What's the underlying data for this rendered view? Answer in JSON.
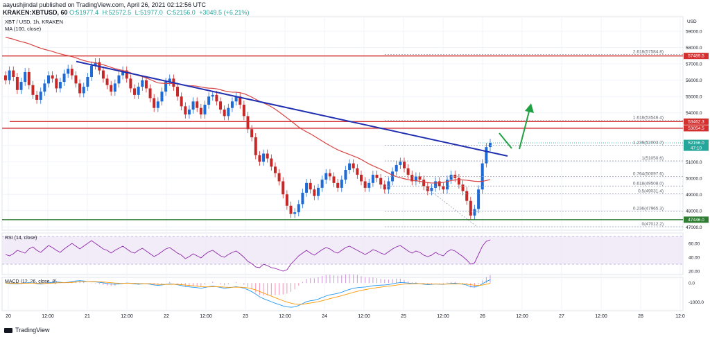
{
  "header": {
    "author_line": "aayushjindal published on TradingView.com, April 26, 2021 02:12:56 UTC",
    "symbol_line": "KRAKEN:XBTUSD, 60",
    "open": "O:51977.4",
    "high": "H:52572.5",
    "low": "L:51977.0",
    "close": "C:52156.0",
    "change": "+3049.5 (+6.21%)"
  },
  "footer": {
    "brand": "TradingView"
  },
  "chart_data": {
    "type": "candlestick",
    "title": "XBT / USD, 1h, KRAKEN",
    "ma_label": "MA (100, close)",
    "currency": "USD",
    "x_tick_labels": [
      "20",
      "12:00",
      "21",
      "12:00",
      "22",
      "12:00",
      "23",
      "12:00",
      "24",
      "12:00",
      "25",
      "12:00",
      "26",
      "12:00",
      "27",
      "12:00",
      "28",
      "12:0"
    ],
    "y_ticks": [
      47000,
      48000,
      49000,
      50000,
      51000,
      52000,
      53000,
      54000,
      55000,
      56000,
      57000,
      58000,
      59000
    ],
    "ylim": [
      46800,
      59900
    ],
    "price_lines": [
      {
        "price": 57489.5,
        "label": "57489.5",
        "color": "#d32f2f"
      },
      {
        "price": 53462.3,
        "label": "53462.3",
        "color": "#d32f2f"
      },
      {
        "price": 53054.5,
        "label": "53054.5",
        "color": "#d32f2f"
      },
      {
        "price": 52156.0,
        "label": "52156.0",
        "sub": "47:10",
        "color": "#26a69a"
      },
      {
        "price": 47446.0,
        "label": "47446.0",
        "color": "#2e7d32"
      }
    ],
    "fib_levels": [
      {
        "ratio": "2.618",
        "price": 57584.8
      },
      {
        "ratio": "1.618",
        "price": 53546.4
      },
      {
        "ratio": "1.236",
        "price": 52003.7
      },
      {
        "ratio": "1",
        "price": 51050.6
      },
      {
        "ratio": "0.764",
        "price": 50097.6
      },
      {
        "ratio": "0.618",
        "price": 49508.0
      },
      {
        "ratio": "0.5",
        "price": 49031.4
      },
      {
        "ratio": "0.236",
        "price": 47965.3
      },
      {
        "ratio": "0",
        "price": 47012.2
      }
    ],
    "candles_close": [
      56000,
      56600,
      56200,
      55400,
      55900,
      56500,
      55700,
      55100,
      54800,
      55300,
      55800,
      56300,
      56100,
      55500,
      55900,
      56400,
      56700,
      56300,
      55800,
      55200,
      55600,
      56200,
      56900,
      57100,
      56600,
      56100,
      55700,
      55300,
      55800,
      56300,
      56600,
      56100,
      55500,
      55100,
      55600,
      56000,
      55500,
      54900,
      54300,
      54700,
      55300,
      55900,
      56100,
      55600,
      55000,
      54400,
      53900,
      54200,
      54700,
      54300,
      53900,
      54500,
      55000,
      55100,
      54700,
      54200,
      53800,
      54300,
      54700,
      55000,
      54500,
      53800,
      53000,
      52500,
      51400,
      51000,
      51500,
      51200,
      50700,
      50300,
      49800,
      49000,
      48300,
      47800,
      47900,
      48400,
      49100,
      49700,
      49300,
      48900,
      49400,
      49900,
      50300,
      50100,
      49700,
      49400,
      49900,
      50500,
      50900,
      50600,
      50200,
      49800,
      49400,
      49700,
      50200,
      50000,
      49600,
      49300,
      49800,
      50400,
      50800,
      51000,
      50600,
      50200,
      49800,
      50100,
      49900,
      49500,
      49200,
      49400,
      49800,
      49500,
      49300,
      49900,
      50200,
      50000,
      49600,
      49200,
      48600,
      47700,
      48100,
      49300,
      50900,
      51900,
      52156
    ],
    "rsi": {
      "label": "RSI (14, close)",
      "ticks": [
        20,
        40,
        60
      ],
      "values": [
        44,
        42,
        45,
        50,
        48,
        46,
        52,
        55,
        50,
        47,
        52,
        57,
        54,
        50,
        47,
        52,
        56,
        60,
        56,
        52,
        56,
        60,
        64,
        60,
        56,
        52,
        50,
        46,
        50,
        53,
        56,
        52,
        48,
        46,
        50,
        53,
        49,
        45,
        41,
        44,
        48,
        52,
        54,
        50,
        46,
        43,
        38,
        41,
        45,
        42,
        39,
        44,
        48,
        50,
        46,
        42,
        40,
        44,
        47,
        49,
        45,
        40,
        34,
        31,
        26,
        25,
        30,
        28,
        25,
        24,
        22,
        20,
        22,
        30,
        36,
        42,
        46,
        50,
        46,
        43,
        47,
        51,
        54,
        52,
        48,
        46,
        50,
        54,
        56,
        53,
        50,
        47,
        44,
        47,
        51,
        49,
        46,
        44,
        48,
        52,
        55,
        57,
        53,
        49,
        46,
        49,
        47,
        43,
        41,
        43,
        47,
        44,
        42,
        48,
        51,
        49,
        45,
        41,
        36,
        30,
        32,
        44,
        56,
        63,
        65
      ]
    },
    "macd": {
      "label": "MACD (12, 26, close, 8)",
      "ticks": [
        "0.0",
        "-1000.0"
      ],
      "macd_values": [
        0,
        -20,
        -30,
        -40,
        -20,
        10,
        20,
        10,
        -30,
        -50,
        -30,
        10,
        40,
        60,
        40,
        20,
        40,
        80,
        110,
        130,
        110,
        80,
        70,
        60,
        40,
        10,
        -20,
        -50,
        -60,
        -40,
        -20,
        0,
        -10,
        -40,
        -60,
        -40,
        -30,
        -60,
        -100,
        -120,
        -100,
        -70,
        -40,
        -60,
        -90,
        -130,
        -180,
        -200,
        -220,
        -240,
        -270,
        -230,
        -190,
        -160,
        -190,
        -230,
        -270,
        -250,
        -220,
        -190,
        -220,
        -270,
        -350,
        -450,
        -580,
        -720,
        -820,
        -900,
        -980,
        -1060,
        -1130,
        -1200,
        -1250,
        -1270,
        -1250,
        -1180,
        -1080,
        -980,
        -930,
        -900,
        -840,
        -760,
        -680,
        -620,
        -580,
        -540,
        -480,
        -400,
        -330,
        -280,
        -240,
        -220,
        -210,
        -180,
        -140,
        -120,
        -110,
        -100,
        -80,
        -40,
        0,
        30,
        20,
        0,
        -20,
        -10,
        -30,
        -60,
        -80,
        -70,
        -50,
        -60,
        -70,
        -40,
        -20,
        -10,
        -30,
        -60,
        -110,
        -190,
        -210,
        -150,
        -40,
        80,
        180
      ]
    }
  }
}
